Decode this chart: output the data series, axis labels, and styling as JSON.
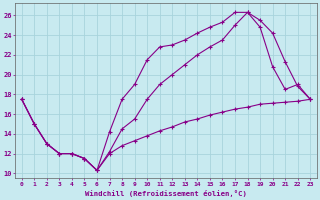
{
  "background_color": "#c8eaf0",
  "grid_color": "#a8d4dc",
  "line_color": "#880088",
  "xlabel": "Windchill (Refroidissement éolien,°C)",
  "ylabel_ticks": [
    10,
    12,
    14,
    16,
    18,
    20,
    22,
    24,
    26
  ],
  "xlim": [
    -0.5,
    23.5
  ],
  "ylim": [
    9.5,
    27.2
  ],
  "xticks": [
    0,
    1,
    2,
    3,
    4,
    5,
    6,
    7,
    8,
    9,
    10,
    11,
    12,
    13,
    14,
    15,
    16,
    17,
    18,
    19,
    20,
    21,
    22,
    23
  ],
  "line1_x": [
    0,
    1,
    2,
    3,
    4,
    5,
    6,
    7,
    8,
    9,
    10,
    11,
    12,
    13,
    14,
    15,
    16,
    17,
    18,
    19,
    20,
    21,
    22,
    23
  ],
  "line1_y": [
    17.5,
    15.0,
    13.0,
    12.0,
    12.0,
    11.5,
    10.3,
    14.2,
    17.5,
    19.0,
    21.5,
    22.8,
    23.0,
    23.5,
    24.2,
    24.8,
    25.3,
    26.3,
    26.3,
    25.5,
    24.2,
    21.3,
    18.8,
    17.5
  ],
  "line2_x": [
    0,
    1,
    2,
    3,
    4,
    5,
    6,
    7,
    8,
    9,
    10,
    11,
    12,
    13,
    14,
    15,
    16,
    17,
    18,
    19,
    20,
    21,
    22,
    23
  ],
  "line2_y": [
    17.5,
    15.0,
    13.0,
    12.0,
    12.0,
    11.5,
    10.3,
    12.2,
    14.5,
    15.5,
    17.5,
    19.0,
    20.0,
    21.0,
    22.0,
    22.8,
    23.5,
    25.0,
    26.3,
    24.8,
    20.8,
    18.5,
    19.0,
    17.5
  ],
  "line3_x": [
    0,
    1,
    2,
    3,
    4,
    5,
    6,
    7,
    8,
    9,
    10,
    11,
    12,
    13,
    14,
    15,
    16,
    17,
    18,
    19,
    20,
    21,
    22,
    23
  ],
  "line3_y": [
    17.5,
    15.0,
    13.0,
    12.0,
    12.0,
    11.5,
    10.3,
    12.0,
    12.8,
    13.3,
    13.8,
    14.3,
    14.7,
    15.2,
    15.5,
    15.9,
    16.2,
    16.5,
    16.7,
    17.0,
    17.1,
    17.2,
    17.3,
    17.5
  ]
}
